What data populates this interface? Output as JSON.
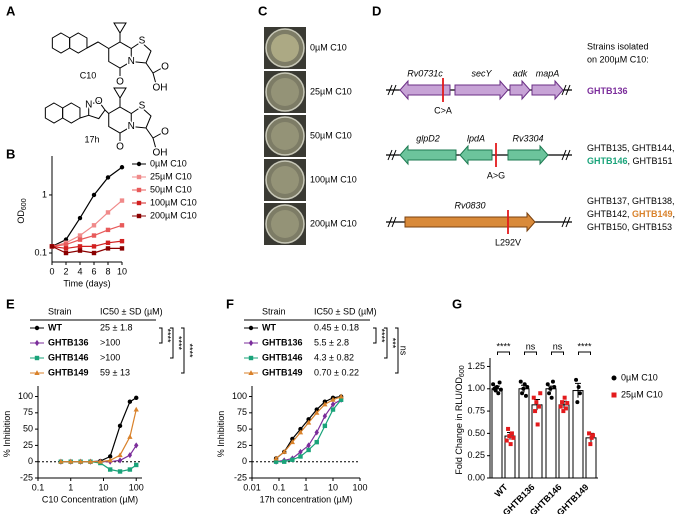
{
  "panel_a": {
    "label": "A",
    "structures": [
      {
        "name": "C10",
        "atoms": [
          "S",
          "N",
          "O",
          "O",
          "OH"
        ]
      },
      {
        "name": "17h",
        "atoms": [
          "N",
          "O",
          "S",
          "N",
          "O",
          "O",
          "OH"
        ]
      }
    ]
  },
  "panel_c": {
    "label": "C",
    "plates": [
      "0µM C10",
      "25µM C10",
      "50µM C10",
      "100µM C10",
      "200µM C10"
    ]
  },
  "panel_d": {
    "label": "D",
    "heading": [
      "Strains isolated",
      "on 200µM C10:"
    ],
    "rows": [
      {
        "genes": [
          "Rv0731c",
          "secY",
          "adk",
          "mapA"
        ],
        "mutation": "C>A",
        "strains": [
          [
            {
              "text": "GHTB136",
              "color": "#7b2d9b"
            }
          ]
        ]
      },
      {
        "genes": [
          "glpD2",
          "lpdA",
          "Rv3304"
        ],
        "mutation": "A>G",
        "strains": [
          [
            {
              "text": "GHTB135, GHTB144,"
            }
          ],
          [
            {
              "text": "GHTB146",
              "color": "#1aa37a"
            },
            {
              "text": ", GHTB151"
            }
          ]
        ]
      },
      {
        "genes": [
          "Rv0830"
        ],
        "mutation": "L292V",
        "strains": [
          [
            {
              "text": "GHTB137, GHTB138,"
            }
          ],
          [
            {
              "text": "GHTB142, "
            },
            {
              "text": "GHTB149",
              "color": "#d9822b"
            },
            {
              "text": ","
            }
          ],
          [
            {
              "text": "GHTB150, GHTB153"
            }
          ]
        ]
      }
    ]
  },
  "chart_data": [
    {
      "type": "line",
      "label": "B",
      "x": [
        0,
        2,
        4,
        6,
        8,
        10
      ],
      "xlim": [
        0,
        10
      ],
      "xticks": [
        0,
        2,
        4,
        6,
        8,
        10
      ],
      "ylim": [
        0.07,
        4
      ],
      "yticks": [
        0.1,
        1
      ],
      "log_y": true,
      "xlabel": "Time (days)",
      "ylabel": "OD",
      "ylabel_subscript": "600",
      "series": [
        {
          "name": "0µM C10",
          "color": "#000000",
          "marker": "circle",
          "values": [
            0.13,
            0.17,
            0.4,
            1.0,
            2.0,
            3.0
          ]
        },
        {
          "name": "25µM C10",
          "color": "#f08a8a",
          "marker": "square",
          "values": [
            0.13,
            0.15,
            0.2,
            0.3,
            0.5,
            0.8
          ]
        },
        {
          "name": "50µM C10",
          "color": "#e85a5a",
          "marker": "square",
          "values": [
            0.13,
            0.14,
            0.17,
            0.2,
            0.25,
            0.3
          ]
        },
        {
          "name": "100µM C10",
          "color": "#d22020",
          "marker": "square",
          "values": [
            0.13,
            0.12,
            0.13,
            0.13,
            0.15,
            0.16
          ]
        },
        {
          "name": "200µM C10",
          "color": "#8b0000",
          "marker": "square",
          "values": [
            0.13,
            0.1,
            0.11,
            0.1,
            0.12,
            0.12
          ]
        }
      ]
    },
    {
      "type": "dose_response",
      "label": "E",
      "table": {
        "header": [
          "Strain",
          "IC50 ± SD (µM)"
        ],
        "ic50": [
          "25 ± 1.8",
          ">100",
          ">100",
          "59 ± 13"
        ]
      },
      "stats": [
        "****",
        "****",
        "****"
      ],
      "x": [
        0.5,
        1,
        2,
        4,
        8,
        16,
        32,
        64,
        100
      ],
      "xlim": [
        0.1,
        150
      ],
      "xticks": [
        0.1,
        1,
        10,
        100
      ],
      "log_x": true,
      "ylim": [
        -25,
        110
      ],
      "yticks": [
        -25,
        0,
        25,
        50,
        75,
        100
      ],
      "xlabel": "C10 Concentration (µM)",
      "ylabel": "% Inhibition",
      "series": [
        {
          "name": "WT",
          "color": "#000000",
          "marker": "circle",
          "values": [
            0,
            0,
            0,
            0,
            1,
            8,
            55,
            92,
            98
          ]
        },
        {
          "name": "GHTB136",
          "color": "#7b2d9b",
          "marker": "diamond",
          "values": [
            0,
            0,
            0,
            0,
            0,
            0,
            2,
            10,
            25
          ]
        },
        {
          "name": "GHTB146",
          "color": "#1aa37a",
          "marker": "square",
          "values": [
            0,
            0,
            0,
            0,
            -2,
            -12,
            -15,
            -12,
            -5
          ]
        },
        {
          "name": "GHTB149",
          "color": "#d9822b",
          "marker": "triangle",
          "values": [
            0,
            0,
            0,
            0,
            0,
            2,
            10,
            38,
            80
          ]
        }
      ]
    },
    {
      "type": "dose_response",
      "label": "F",
      "table": {
        "header": [
          "Strain",
          "IC50 ± SD (µM)"
        ],
        "ic50": [
          "0.45 ± 0.18",
          "5.5 ± 2.8",
          "4.3 ± 0.82",
          "0.70 ± 0.22"
        ]
      },
      "stats": [
        "****",
        "***",
        "ns"
      ],
      "x": [
        0.078,
        0.156,
        0.3125,
        0.625,
        1.25,
        2.5,
        5,
        10,
        20
      ],
      "xlim": [
        0.01,
        100
      ],
      "xticks": [
        0.01,
        0.1,
        1,
        10,
        100
      ],
      "log_x": true,
      "ylim": [
        -25,
        110
      ],
      "yticks": [
        -25,
        0,
        25,
        50,
        75,
        100
      ],
      "xlabel": "17h concentration (µM)",
      "ylabel": "% Inhibition",
      "series": [
        {
          "name": "WT",
          "color": "#000000",
          "marker": "circle",
          "values": [
            5,
            15,
            35,
            50,
            65,
            80,
            92,
            98,
            100
          ]
        },
        {
          "name": "GHTB136",
          "color": "#7b2d9b",
          "marker": "diamond",
          "values": [
            0,
            2,
            5,
            15,
            25,
            45,
            70,
            88,
            95
          ]
        },
        {
          "name": "GHTB146",
          "color": "#1aa37a",
          "marker": "square",
          "values": [
            0,
            0,
            3,
            8,
            18,
            30,
            55,
            80,
            95
          ]
        },
        {
          "name": "GHTB149",
          "color": "#d9822b",
          "marker": "triangle",
          "values": [
            5,
            15,
            30,
            45,
            60,
            75,
            88,
            95,
            100
          ]
        }
      ]
    },
    {
      "type": "grouped_bar",
      "label": "G",
      "categories": [
        "WT",
        "GHTB136",
        "GHTB146",
        "GHTB149"
      ],
      "category_colors": [
        "#000000",
        "#7b2d9b",
        "#1aa37a",
        "#d9822b"
      ],
      "ylim": [
        0,
        1.3
      ],
      "yticks": [
        {
          "value": 0,
          "label": "0.00"
        },
        {
          "value": 0.25,
          "label": "0.25"
        },
        {
          "value": 0.5,
          "label": "0.50"
        },
        {
          "value": 0.75,
          "label": "0.75"
        },
        {
          "value": 1,
          "label": "1.00"
        },
        {
          "value": 1.25,
          "label": "1.25"
        }
      ],
      "ylabel": "Fold Change in RLU/OD",
      "ylabel_subscript": "600",
      "stats": [
        "****",
        "ns",
        "ns",
        "****"
      ],
      "series": [
        {
          "name": "0µM C10",
          "color": "#000000",
          "marker": "circle",
          "values": [
            1.0,
            1.0,
            1.0,
            0.98
          ],
          "errors": [
            0.03,
            0.04,
            0.03,
            0.08
          ],
          "points": [
            [
              1.05,
              1.0,
              0.98,
              1.02,
              0.95,
              1.07,
              0.99
            ],
            [
              1.08,
              0.95,
              1.0,
              1.05,
              0.92,
              1.02
            ],
            [
              1.05,
              0.95,
              1.0,
              0.9,
              1.08,
              1.02
            ],
            [
              1.1,
              0.85,
              1.02,
              0.95
            ]
          ]
        },
        {
          "name": "25µM C10",
          "color": "#e31a1c",
          "marker": "square",
          "values": [
            0.47,
            0.82,
            0.82,
            0.45
          ],
          "errors": [
            0.04,
            0.06,
            0.04,
            0.05
          ],
          "points": [
            [
              0.42,
              0.55,
              0.47,
              0.38,
              0.5,
              0.45
            ],
            [
              0.9,
              0.75,
              0.85,
              0.6,
              0.8,
              0.95
            ],
            [
              0.8,
              0.85,
              0.75,
              0.9,
              0.78,
              0.84
            ],
            [
              0.5,
              0.38,
              0.45,
              0.48
            ]
          ]
        }
      ]
    }
  ]
}
